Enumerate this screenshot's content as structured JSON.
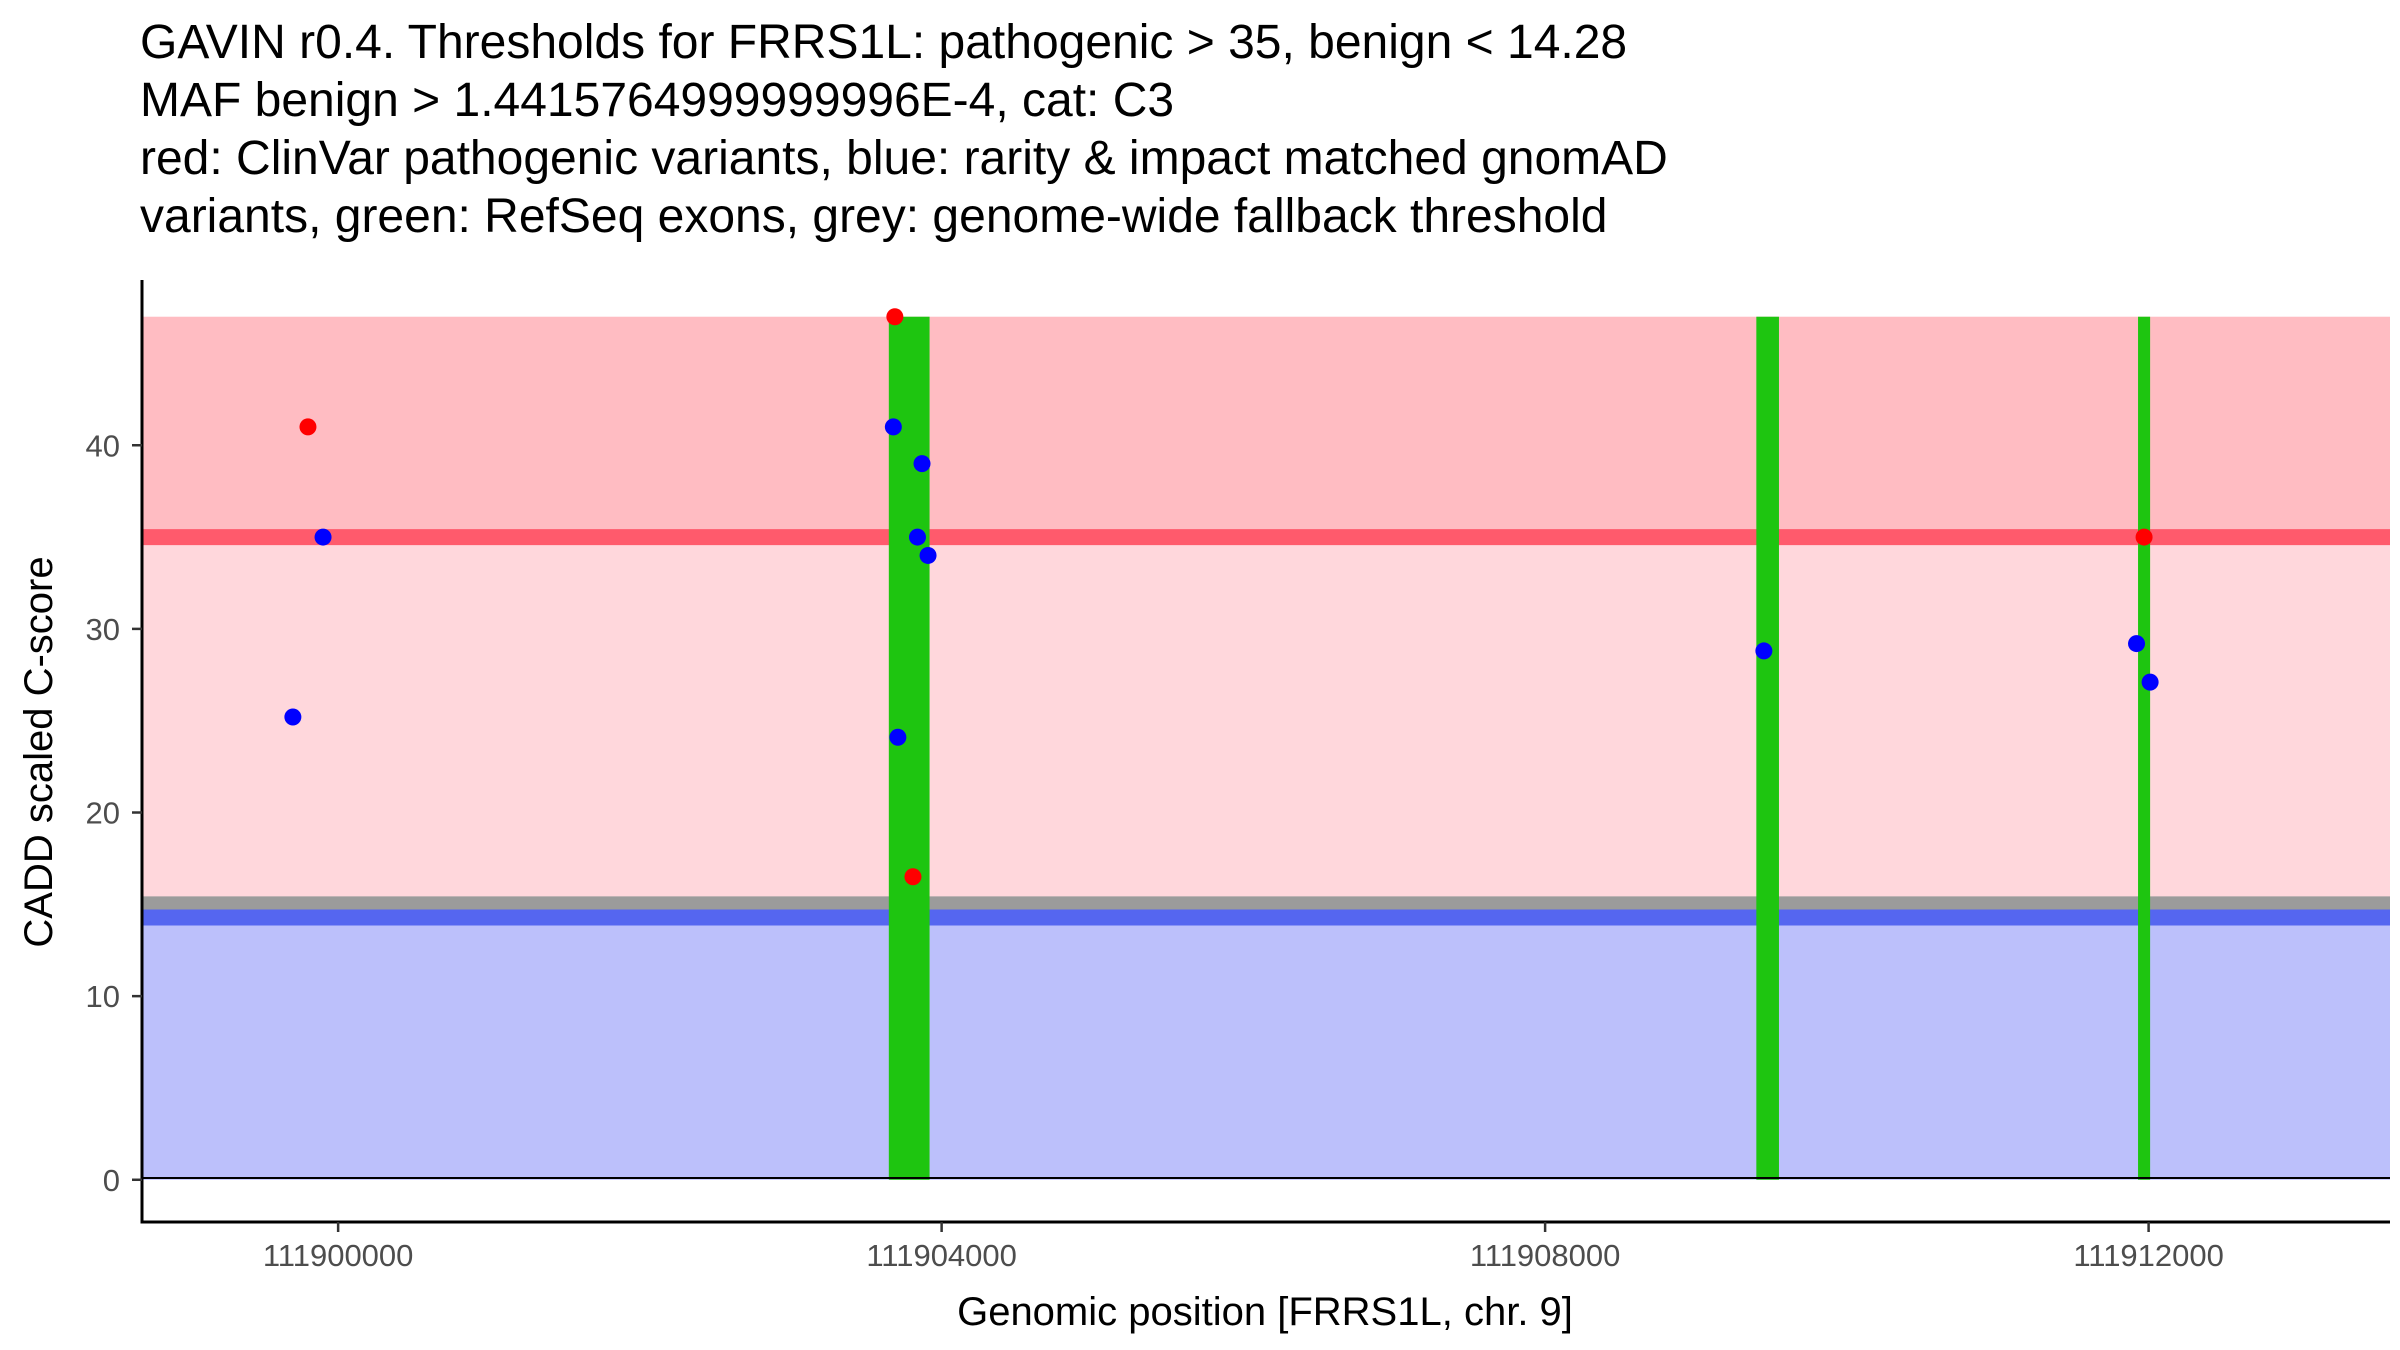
{
  "chart_data": {
    "type": "scatter",
    "title_lines": [
      "GAVIN r0.4. Thresholds for FRRS1L: pathogenic > 35, benign < 14.28",
      "MAF benign > 1.4415764999999996E-4, cat: C3",
      "red: ClinVar pathogenic variants, blue: rarity & impact matched gnomAD",
      "variants, green: RefSeq exons, grey: genome-wide fallback threshold"
    ],
    "xlabel": "Genomic position [FRRS1L, chr. 9]",
    "ylabel": "CADD scaled C-score",
    "xlim": [
      111898700,
      111913600
    ],
    "ylim": [
      -2.3,
      49
    ],
    "x_ticks": [
      111900000,
      111904000,
      111908000,
      111912000
    ],
    "x_tick_labels": [
      "111900000",
      "111904000",
      "111908000",
      "111912000"
    ],
    "y_ticks": [
      0,
      10,
      20,
      30,
      40
    ],
    "y_tick_labels": [
      "0",
      "10",
      "20",
      "30",
      "40"
    ],
    "regions": [
      {
        "name": "pathogenic-zone",
        "y0": 35,
        "y1": 47,
        "color": "#ffbcc2"
      },
      {
        "name": "intermediate-zone",
        "y0": 14.28,
        "y1": 35,
        "color": "#ffd7dc"
      },
      {
        "name": "benign-zone",
        "y0": 0,
        "y1": 14.28,
        "color": "#bcc0fb"
      }
    ],
    "region_x_range": [
      111898700,
      111913600
    ],
    "threshold_lines": [
      {
        "name": "fallback-threshold-line",
        "y": 15.0,
        "color": "#9b9b9b"
      },
      {
        "name": "benign-threshold-line",
        "y": 14.28,
        "color": "#5566f0"
      },
      {
        "name": "pathogenic-threshold-line",
        "y": 35,
        "color": "#ff5a6c"
      }
    ],
    "exons": [
      {
        "start": 111903650,
        "end": 111903920,
        "y0": 0,
        "y1": 47,
        "color": "#1ec510"
      },
      {
        "start": 111909400,
        "end": 111909550,
        "y0": 0,
        "y1": 47,
        "color": "#1ec510"
      },
      {
        "start": 111911930,
        "end": 111912010,
        "y0": 0,
        "y1": 47,
        "color": "#1ec510"
      }
    ],
    "series": [
      {
        "name": "ClinVar pathogenic",
        "color": "#ff0000",
        "points": [
          {
            "x": 111899800,
            "y": 41
          },
          {
            "x": 111903690,
            "y": 47
          },
          {
            "x": 111903810,
            "y": 16.5
          },
          {
            "x": 111911970,
            "y": 35
          }
        ]
      },
      {
        "name": "gnomAD matched",
        "color": "#0000ff",
        "points": [
          {
            "x": 111899700,
            "y": 25.2
          },
          {
            "x": 111899900,
            "y": 35
          },
          {
            "x": 111903680,
            "y": 41
          },
          {
            "x": 111903710,
            "y": 24.1
          },
          {
            "x": 111903840,
            "y": 35
          },
          {
            "x": 111903870,
            "y": 39
          },
          {
            "x": 111903910,
            "y": 34
          },
          {
            "x": 111909450,
            "y": 28.8
          },
          {
            "x": 111911920,
            "y": 29.2
          },
          {
            "x": 111912010,
            "y": 27.1
          }
        ]
      }
    ]
  }
}
